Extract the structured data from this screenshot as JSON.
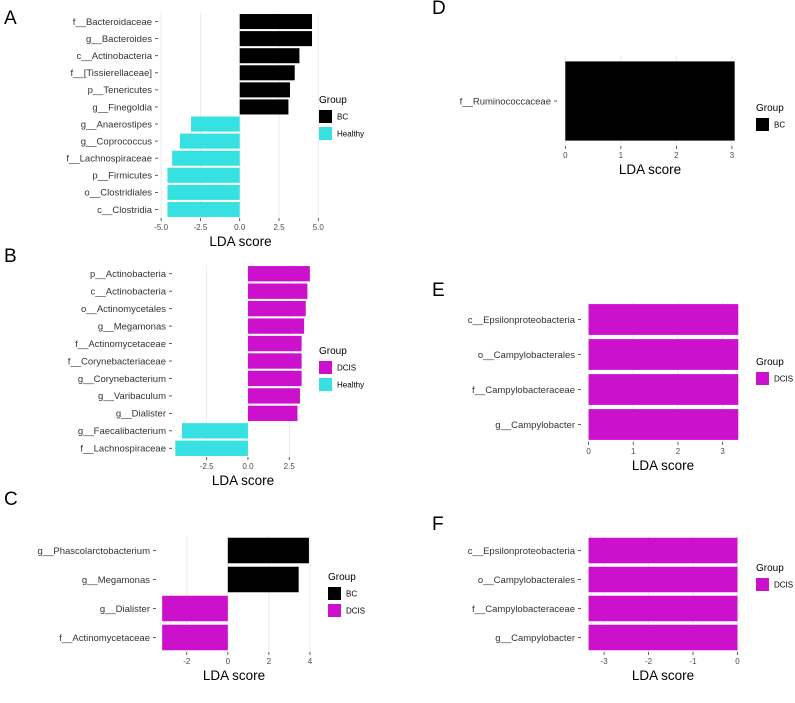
{
  "chart_data": [
    {
      "panel": "A",
      "type": "bar",
      "orientation": "horizontal",
      "categories": [
        "f__Bacteroidaceae",
        "g__Bacteroides",
        "c__Actinobacteria",
        "f__[Tissierellaceae]",
        "p__Tenericutes",
        "g__Finegoldia",
        "g__Anaerostipes",
        "g__Coprococcus",
        "f__Lachnospiraceae",
        "p__Firmicutes",
        "o__Clostridiales",
        "c__Clostridia"
      ],
      "values": [
        4.6,
        4.6,
        3.8,
        3.5,
        3.2,
        3.1,
        -3.1,
        -3.8,
        -4.3,
        -4.6,
        -4.6,
        -4.6
      ],
      "groups": [
        "BC",
        "BC",
        "BC",
        "BC",
        "BC",
        "BC",
        "Healthy",
        "Healthy",
        "Healthy",
        "Healthy",
        "Healthy",
        "Healthy"
      ],
      "xlabel": "LDA score",
      "xlim": [
        -5.2,
        5.3
      ],
      "xticks": [
        -5.0,
        -2.5,
        0.0,
        2.5,
        5.0
      ],
      "xtick_labels": [
        "-5.0",
        "-2.5",
        "0.0",
        "2.5",
        "5.0"
      ],
      "legend": {
        "title": "Group",
        "entries": [
          {
            "name": "BC",
            "color": "#000000"
          },
          {
            "name": "Healthy",
            "color": "#37E1E1"
          }
        ]
      }
    },
    {
      "panel": "B",
      "type": "bar",
      "orientation": "horizontal",
      "categories": [
        "p__Actinobacteria",
        "c__Actinobacteria",
        "o__Actinomycetales",
        "g__Megamonas",
        "f__Actinomycetaceae",
        "f__Corynebacteriaceae",
        "g__Corynebacterium",
        "g__Varibaculum",
        "g__Dialister",
        "g__Faecalibacterium",
        "f__Lachnospiraceae"
      ],
      "values": [
        3.75,
        3.6,
        3.5,
        3.4,
        3.25,
        3.25,
        3.25,
        3.15,
        3.0,
        -4.0,
        -4.4
      ],
      "groups": [
        "DCIS",
        "DCIS",
        "DCIS",
        "DCIS",
        "DCIS",
        "DCIS",
        "DCIS",
        "DCIS",
        "DCIS",
        "Healthy",
        "Healthy"
      ],
      "xlabel": "LDA score",
      "xlim": [
        -4.6,
        4.0
      ],
      "xticks": [
        -2.5,
        0.0,
        2.5
      ],
      "xtick_labels": [
        "-2.5",
        "0.0",
        "2.5"
      ],
      "legend": {
        "title": "Group",
        "entries": [
          {
            "name": "DCIS",
            "color": "#CC11CC"
          },
          {
            "name": "Healthy",
            "color": "#37E1E1"
          }
        ]
      }
    },
    {
      "panel": "C",
      "type": "bar",
      "orientation": "horizontal",
      "categories": [
        "g__Phascolarctobacterium",
        "g__Megamonas",
        "g__Dialister",
        "f__Actinomycetaceae"
      ],
      "values": [
        3.95,
        3.45,
        -3.2,
        -3.2
      ],
      "groups": [
        "BC",
        "BC",
        "DCIS",
        "DCIS"
      ],
      "xlabel": "LDA score",
      "xlim": [
        -3.5,
        4.1
      ],
      "xticks": [
        -2,
        0,
        2,
        4
      ],
      "xtick_labels": [
        "-2",
        "0",
        "2",
        "4"
      ],
      "legend": {
        "title": "Group",
        "entries": [
          {
            "name": "BC",
            "color": "#000000"
          },
          {
            "name": "DCIS",
            "color": "#CC11CC"
          }
        ]
      }
    },
    {
      "panel": "D",
      "type": "bar",
      "orientation": "horizontal",
      "categories": [
        "f__Ruminococcaceae"
      ],
      "values": [
        3.05
      ],
      "groups": [
        "BC"
      ],
      "xlabel": "LDA score",
      "xlim": [
        -0.15,
        3.2
      ],
      "xticks": [
        0,
        1,
        2,
        3
      ],
      "xtick_labels": [
        "0",
        "1",
        "2",
        "3"
      ],
      "legend": {
        "title": "Group",
        "entries": [
          {
            "name": "BC",
            "color": "#000000"
          }
        ]
      }
    },
    {
      "panel": "E",
      "type": "bar",
      "orientation": "horizontal",
      "categories": [
        "c__Epsilonproteobacteria",
        "o__Campylobacterales",
        "f__Campylobacteraceae",
        "g__Campylobacter"
      ],
      "values": [
        3.35,
        3.35,
        3.35,
        3.35
      ],
      "groups": [
        "DCIS",
        "DCIS",
        "DCIS",
        "DCIS"
      ],
      "xlabel": "LDA score",
      "xlim": [
        -0.17,
        3.5
      ],
      "xticks": [
        0,
        1,
        2,
        3
      ],
      "xtick_labels": [
        "0",
        "1",
        "2",
        "3"
      ],
      "legend": {
        "title": "Group",
        "entries": [
          {
            "name": "DCIS",
            "color": "#CC11CC"
          }
        ]
      }
    },
    {
      "panel": "F",
      "type": "bar",
      "orientation": "horizontal",
      "categories": [
        "c__Epsilonproteobacteria",
        "o__Campylobacterales",
        "f__Campylobacteraceae",
        "g__Campylobacter"
      ],
      "values": [
        -3.35,
        -3.35,
        -3.35,
        -3.35
      ],
      "groups": [
        "DCIS",
        "DCIS",
        "DCIS",
        "DCIS"
      ],
      "xlabel": "LDA score",
      "xlim": [
        -3.52,
        0.17
      ],
      "xticks": [
        -3,
        -2,
        -1,
        0
      ],
      "xtick_labels": [
        "-3",
        "-2",
        "-1",
        "0"
      ],
      "legend": {
        "title": "Group",
        "entries": [
          {
            "name": "DCIS",
            "color": "#CC11CC"
          }
        ]
      }
    }
  ]
}
